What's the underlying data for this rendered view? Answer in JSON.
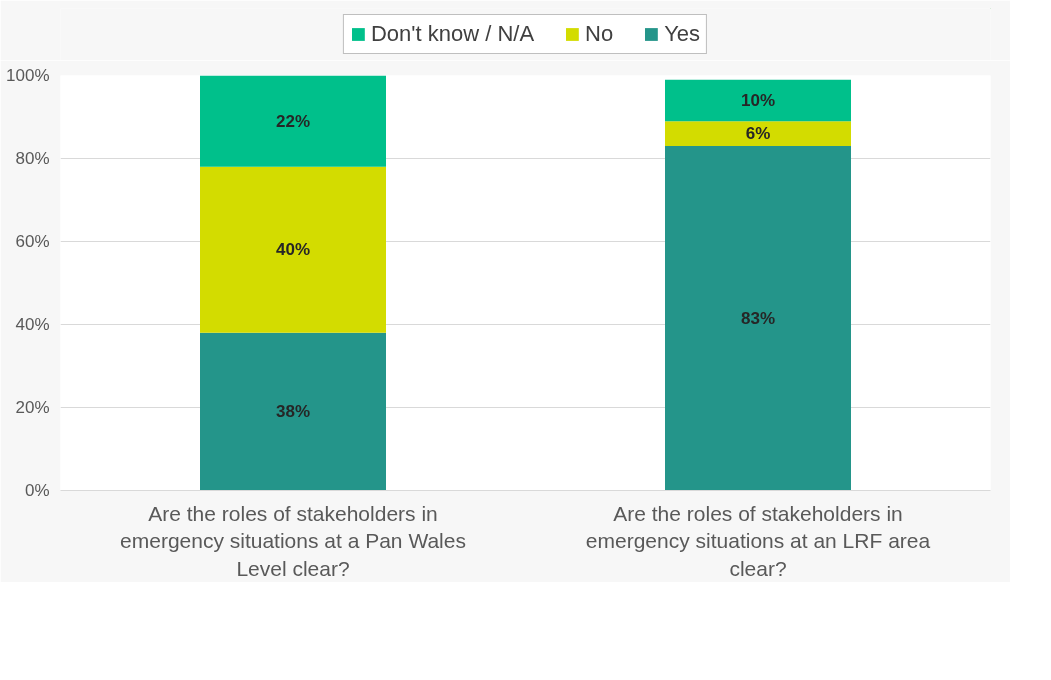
{
  "chart_data": {
    "type": "bar",
    "stacked": true,
    "categories": [
      "Are the roles of stakeholders in emergency situations at a Pan Wales Level clear?",
      "Are the roles of stakeholders in emergency situations at an LRF area clear?"
    ],
    "series": [
      {
        "name": "Yes",
        "color": "#24958a",
        "values": [
          38,
          83
        ],
        "value_labels": [
          "38%",
          "83%"
        ]
      },
      {
        "name": "No",
        "color": "#d3dc00",
        "values": [
          40,
          6
        ],
        "value_labels": [
          "40%",
          "6%"
        ]
      },
      {
        "name": "Don't know / N/A",
        "color": "#00c08b",
        "values": [
          22,
          10
        ],
        "value_labels": [
          "22%",
          "10%"
        ]
      }
    ],
    "ylim": [
      0,
      100
    ],
    "yticks": [
      {
        "value": 0,
        "label": "0%"
      },
      {
        "value": 20,
        "label": "20%"
      },
      {
        "value": 40,
        "label": "40%"
      },
      {
        "value": 60,
        "label": "60%"
      },
      {
        "value": 80,
        "label": "80%"
      },
      {
        "value": 100,
        "label": "100%"
      }
    ],
    "grid": "y",
    "legend": "top"
  }
}
